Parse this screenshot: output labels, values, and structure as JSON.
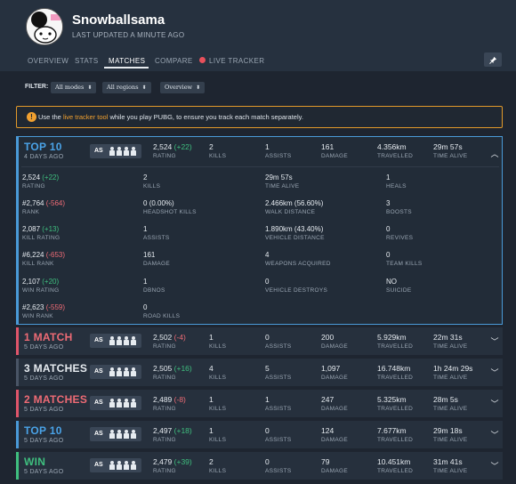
{
  "profile": {
    "username": "Snowballsama",
    "last_updated": "LAST UPDATED A MINUTE AGO"
  },
  "tabs": [
    {
      "label": "OVERVIEW",
      "active": false
    },
    {
      "label": "STATS",
      "active": false
    },
    {
      "label": "MATCHES",
      "active": true
    },
    {
      "label": "COMPARE",
      "active": false
    },
    {
      "label": "LIVE TRACKER",
      "active": false
    }
  ],
  "filter": {
    "label": "FILTER:",
    "mode": "All modes",
    "region": "All regions",
    "view": "Overview"
  },
  "notice": {
    "prefix": "Use the ",
    "link": "live tracker tool",
    "suffix": " while you play PUBG, to ensure you track each match separately."
  },
  "labels": {
    "rating": "RATING",
    "kills": "KILLS",
    "assists": "ASSISTS",
    "damage": "DAMAGE",
    "travelled": "TRAVELLED",
    "time_alive": "TIME ALIVE",
    "mode_short": "AS"
  },
  "expanded": {
    "place": "TOP 10",
    "ago": "4 DAYS AGO",
    "rating": "2,524",
    "rating_change": "(+22)",
    "kills": "2",
    "assists": "1",
    "damage": "161",
    "travelled": "4.356km",
    "time_alive": "29m 57s",
    "details": [
      [
        {
          "value": "2,524",
          "delta": "(+22)",
          "label": "RATING"
        },
        {
          "value": "2",
          "label": "KILLS"
        },
        {
          "value": "29m 57s",
          "label": "TIME ALIVE"
        },
        {
          "value": "1",
          "label": "HEALS"
        }
      ],
      [
        {
          "value": "#2,764",
          "delta": "(-564)",
          "label": "RANK"
        },
        {
          "value": "0",
          "extra": "(0.00%)",
          "label": "HEADSHOT KILLS"
        },
        {
          "value": "2.466km",
          "extra": "(56.60%)",
          "label": "WALK DISTANCE"
        },
        {
          "value": "3",
          "label": "BOOSTS"
        }
      ],
      [
        {
          "value": "2,087",
          "delta": "(+13)",
          "label": "KILL RATING"
        },
        {
          "value": "1",
          "label": "ASSISTS"
        },
        {
          "value": "1.890km",
          "extra": "(43.40%)",
          "label": "VEHICLE DISTANCE"
        },
        {
          "value": "0",
          "label": "REVIVES"
        }
      ],
      [
        {
          "value": "#6,224",
          "delta": "(-653)",
          "label": "KILL RANK"
        },
        {
          "value": "161",
          "label": "DAMAGE"
        },
        {
          "value": "4",
          "label": "WEAPONS ACQUIRED"
        },
        {
          "value": "0",
          "label": "TEAM KILLS"
        }
      ],
      [
        {
          "value": "2,107",
          "delta": "(+20)",
          "label": "WIN RATING"
        },
        {
          "value": "1",
          "label": "DBNOS"
        },
        {
          "value": "0",
          "label": "VEHICLE DESTROYS"
        },
        {
          "value": "NO",
          "label": "SUICIDE"
        }
      ],
      [
        {
          "value": "#2,623",
          "delta": "(-559)",
          "label": "WIN RANK"
        },
        {
          "value": "0",
          "label": "ROAD KILLS"
        }
      ]
    ]
  },
  "matches": [
    {
      "place": "1 MATCH",
      "ago": "5 DAYS AGO",
      "rating": "2,502",
      "rating_change": "(-4)",
      "kills": "1",
      "assists": "0",
      "damage": "200",
      "travelled": "5.929km",
      "time_alive": "22m 31s"
    },
    {
      "place": "3 MATCHES",
      "ago": "5 DAYS AGO",
      "rating": "2,505",
      "rating_change": "(+16)",
      "kills": "4",
      "assists": "5",
      "damage": "1,097",
      "travelled": "16.748km",
      "time_alive": "1h 24m 29s"
    },
    {
      "place": "2 MATCHES",
      "ago": "5 DAYS AGO",
      "rating": "2,489",
      "rating_change": "(-8)",
      "kills": "1",
      "assists": "1",
      "damage": "247",
      "travelled": "5.325km",
      "time_alive": "28m 5s"
    },
    {
      "place": "TOP 10",
      "ago": "5 DAYS AGO",
      "rating": "2,497",
      "rating_change": "(+18)",
      "kills": "1",
      "assists": "0",
      "damage": "124",
      "travelled": "7.677km",
      "time_alive": "29m 18s"
    },
    {
      "place": "WIN",
      "ago": "5 DAYS AGO",
      "rating": "2,479",
      "rating_change": "(+39)",
      "kills": "2",
      "assists": "0",
      "damage": "79",
      "travelled": "10.451km",
      "time_alive": "31m 41s"
    }
  ],
  "colors": {
    "accent_blue": "#4a9ad8",
    "positive": "#3fbf7f",
    "negative": "#ee6b75",
    "warning": "#e39a2a"
  }
}
